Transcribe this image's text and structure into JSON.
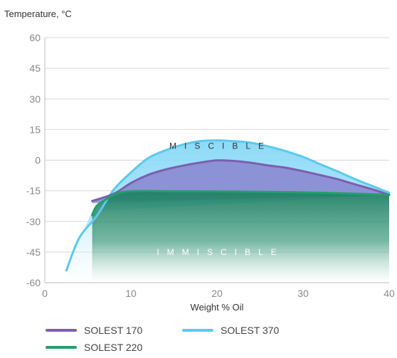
{
  "chart_data": {
    "type": "line",
    "ylabel": "Temperature, °C",
    "xlabel": "Weight % Oil",
    "xlim": [
      0,
      40
    ],
    "ylim": [
      -60,
      60
    ],
    "x_ticks": [
      0,
      10,
      20,
      30,
      40
    ],
    "y_ticks": [
      60,
      45,
      30,
      15,
      0,
      -15,
      -30,
      -45,
      -60
    ],
    "grid": "horizontal",
    "legend_position": "bottom-left",
    "annotations": [
      {
        "text": "MISCIBLE",
        "x": 20,
        "y": 7,
        "color": "#333333"
      },
      {
        "text": "IMMISCIBLE",
        "x": 20,
        "y": -45,
        "color": "#ffffff"
      }
    ],
    "series": [
      {
        "name": "SOLEST 170",
        "color": "#7b5fae",
        "fill": "#8a8ad0",
        "x": [
          5.5,
          8,
          10,
          12,
          14,
          16,
          18,
          20,
          22,
          24,
          26,
          28,
          30,
          32,
          34,
          36,
          38,
          40
        ],
        "y": [
          -20,
          -16.5,
          -11.2,
          -7.2,
          -4.6,
          -2.7,
          -1.2,
          -0.1,
          -0.4,
          -1.3,
          -2.6,
          -3.7,
          -5.4,
          -7.3,
          -9.3,
          -11.8,
          -14.2,
          -17
        ]
      },
      {
        "name": "SOLEST 220",
        "color": "#22a06b",
        "fill": "#2e8b6e",
        "x": [
          5.5,
          6,
          7,
          8,
          9,
          10,
          12,
          15,
          20,
          25,
          30,
          35,
          40
        ],
        "y": [
          -27,
          -22.5,
          -19.5,
          -17,
          -15.7,
          -15.2,
          -15.1,
          -15.2,
          -15.3,
          -15.5,
          -15.8,
          -16.3,
          -17
        ]
      },
      {
        "name": "SOLEST 370",
        "color": "#5cc9ee",
        "fill": "#9ee0f8",
        "x": [
          2.5,
          4,
          6,
          8,
          10,
          12,
          14,
          16,
          18,
          20,
          22,
          24,
          26,
          28,
          30,
          32,
          34,
          36,
          38,
          40
        ],
        "y": [
          -54,
          -38,
          -27.5,
          -14.5,
          -6,
          1,
          4.8,
          7.6,
          9.3,
          9.7,
          9.3,
          8.5,
          6.7,
          4.4,
          1.6,
          -2,
          -5.5,
          -9.2,
          -12.6,
          -16
        ]
      }
    ]
  }
}
